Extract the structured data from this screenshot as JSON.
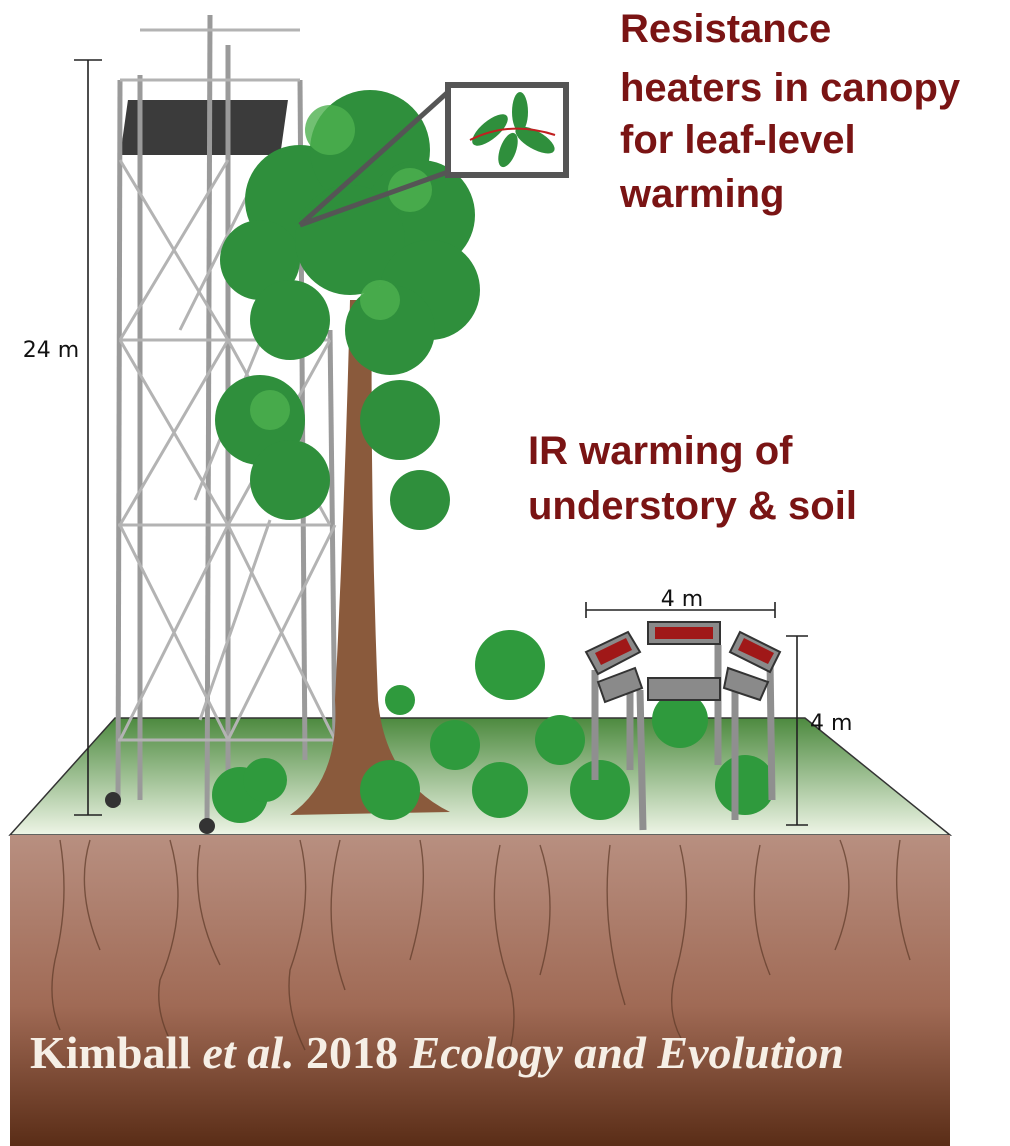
{
  "labels": {
    "canopy_heaters": {
      "lines": [
        "Resistance",
        "heaters in canopy",
        "for leaf-level",
        "warming"
      ]
    },
    "ir_warming": {
      "lines": [
        "IR warming of",
        "understory & soil"
      ]
    },
    "tower_height": "24 m",
    "rig_width": "4 m",
    "rig_height": "4 m"
  },
  "citation": {
    "author": "Kimball",
    "etal": "et al.",
    "year": "2018",
    "journal": "Ecology and Evolution"
  }
}
